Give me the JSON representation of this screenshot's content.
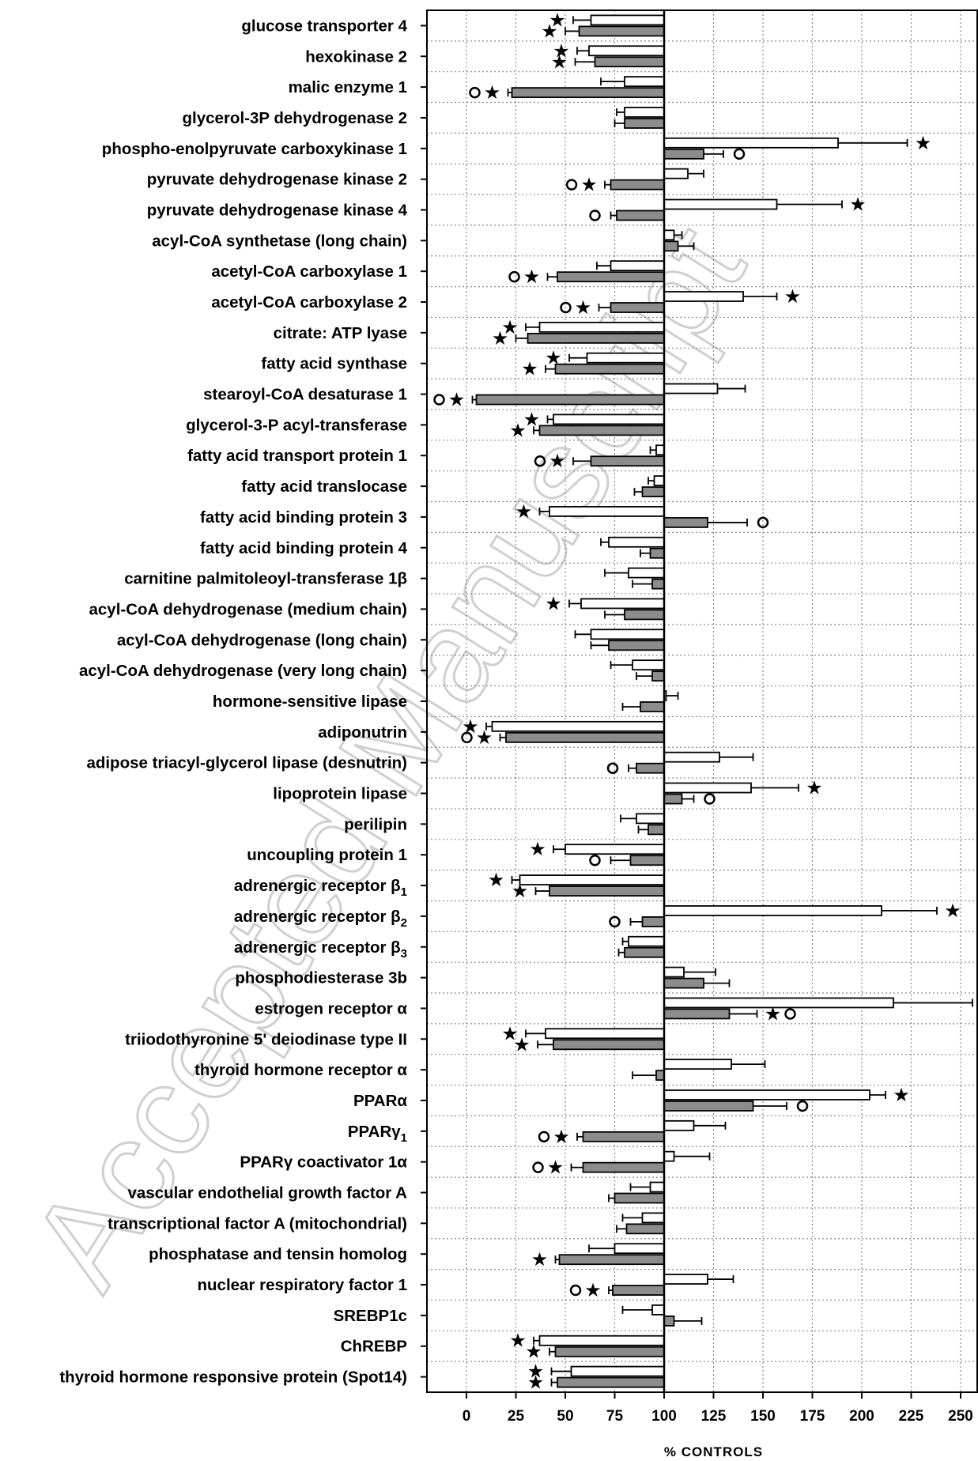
{
  "watermark": "Accepted Manuscript",
  "chart_data": {
    "type": "bar",
    "orientation": "horizontal",
    "xlabel": "% CONTROLS",
    "xlim": [
      -20,
      255
    ],
    "xticks": [
      0,
      25,
      50,
      75,
      100,
      125,
      150,
      175,
      200,
      225,
      250
    ],
    "baseline": 100,
    "grid": true,
    "series": [
      {
        "style": "white"
      },
      {
        "style": "gray"
      }
    ],
    "categories": [
      {
        "label": "glucose transporter 4",
        "v1": 63,
        "e1": 9,
        "m1": "star",
        "v2": 57,
        "e2": 7,
        "m2": "star"
      },
      {
        "label": "hexokinase 2",
        "v1": 62,
        "e1": 6,
        "m1": "star",
        "v2": 65,
        "e2": 10,
        "m2": "star"
      },
      {
        "label": "malic enzyme 1",
        "v1": 80,
        "e1": 12,
        "m1": "",
        "v2": 23,
        "e2": 2,
        "m2": "circle-star"
      },
      {
        "label": "glycerol-3P dehydrogenase 2",
        "v1": 80,
        "e1": 4,
        "m1": "",
        "v2": 80,
        "e2": 5,
        "m2": ""
      },
      {
        "label": "phospho-enolpyruvate carboxykinase 1",
        "v1": 188,
        "e1": 35,
        "m1": "star",
        "v2": 120,
        "e2": 10,
        "m2": "circle"
      },
      {
        "label": "pyruvate dehydrogenase kinase 2",
        "v1": 112,
        "e1": 8,
        "m1": "",
        "v2": 73,
        "e2": 3,
        "m2": "circle-star"
      },
      {
        "label": "pyruvate dehydrogenase kinase 4",
        "v1": 157,
        "e1": 33,
        "m1": "star",
        "v2": 76,
        "e2": 3,
        "m2": "circle"
      },
      {
        "label": "acyl-CoA synthetase (long chain)",
        "v1": 105,
        "e1": 4,
        "m1": "",
        "v2": 107,
        "e2": 8,
        "m2": ""
      },
      {
        "label": "acetyl-CoA carboxylase 1",
        "v1": 73,
        "e1": 7,
        "m1": "",
        "v2": 46,
        "e2": 5,
        "m2": "circle-star"
      },
      {
        "label": "acetyl-CoA carboxylase 2",
        "v1": 140,
        "e1": 17,
        "m1": "star",
        "v2": 73,
        "e2": 6,
        "m2": "circle-star"
      },
      {
        "label": "citrate: ATP lyase",
        "v1": 37,
        "e1": 7,
        "m1": "star",
        "v2": 31,
        "e2": 6,
        "m2": "star"
      },
      {
        "label": "fatty acid synthase",
        "v1": 61,
        "e1": 9,
        "m1": "star",
        "v2": 45,
        "e2": 5,
        "m2": "star"
      },
      {
        "label": "stearoyl-CoA desaturase 1",
        "v1": 127,
        "e1": 14,
        "m1": "",
        "v2": 5,
        "e2": 2,
        "m2": "circle-star"
      },
      {
        "label": "glycerol-3-P acyl-transferase",
        "v1": 44,
        "e1": 3,
        "m1": "star",
        "v2": 37,
        "e2": 3,
        "m2": "star"
      },
      {
        "label": "fatty acid transport protein 1",
        "v1": 96,
        "e1": 3,
        "m1": "",
        "v2": 63,
        "e2": 9,
        "m2": "circle-star"
      },
      {
        "label": "fatty acid translocase",
        "v1": 95,
        "e1": 3,
        "m1": "",
        "v2": 89,
        "e2": 4,
        "m2": ""
      },
      {
        "label": "fatty acid binding protein 3",
        "v1": 42,
        "e1": 5,
        "m1": "star",
        "v2": 122,
        "e2": 20,
        "m2": "circle"
      },
      {
        "label": "fatty acid binding protein 4",
        "v1": 72,
        "e1": 4,
        "m1": "",
        "v2": 93,
        "e2": 5,
        "m2": ""
      },
      {
        "label": "carnitine palmitoleoyl-transferase 1β",
        "v1": 82,
        "e1": 12,
        "m1": "",
        "v2": 94,
        "e2": 10,
        "m2": ""
      },
      {
        "label": "acyl-CoA dehydrogenase (medium chain)",
        "v1": 58,
        "e1": 6,
        "m1": "star",
        "v2": 80,
        "e2": 10,
        "m2": ""
      },
      {
        "label": "acyl-CoA dehydrogenase (long chain)",
        "v1": 63,
        "e1": 8,
        "m1": "",
        "v2": 72,
        "e2": 9,
        "m2": ""
      },
      {
        "label": "acyl-CoA dehydrogenase (very long chain)",
        "v1": 84,
        "e1": 11,
        "m1": "",
        "v2": 94,
        "e2": 8,
        "m2": ""
      },
      {
        "label": "hormone-sensitive lipase",
        "v1": 101,
        "e1": 6,
        "m1": "",
        "v2": 88,
        "e2": 9,
        "m2": ""
      },
      {
        "label": "adiponutrin",
        "v1": 13,
        "e1": 3,
        "m1": "star",
        "v2": 20,
        "e2": 3,
        "m2": "circle-star"
      },
      {
        "label": "adipose triacyl-glycerol lipase (desnutrin)",
        "v1": 128,
        "e1": 17,
        "m1": "",
        "v2": 86,
        "e2": 4,
        "m2": "circle"
      },
      {
        "label": "lipoprotein lipase",
        "v1": 144,
        "e1": 24,
        "m1": "star",
        "v2": 109,
        "e2": 6,
        "m2": "circle"
      },
      {
        "label": "perilipin",
        "v1": 86,
        "e1": 8,
        "m1": "",
        "v2": 92,
        "e2": 5,
        "m2": ""
      },
      {
        "label": "uncoupling protein 1",
        "v1": 50,
        "e1": 6,
        "m1": "star",
        "v2": 83,
        "e2": 10,
        "m2": "circle"
      },
      {
        "label": "adrenergic receptor β1",
        "v1": 27,
        "e1": 4,
        "m1": "star",
        "v2": 42,
        "e2": 7,
        "m2": "star"
      },
      {
        "label": "adrenergic receptor β2",
        "v1": 210,
        "e1": 28,
        "m1": "star",
        "v2": 89,
        "e2": 6,
        "m2": "circle"
      },
      {
        "label": "adrenergic receptor β3",
        "v1": 82,
        "e1": 3,
        "m1": "",
        "v2": 80,
        "e2": 3,
        "m2": ""
      },
      {
        "label": "phosphodiesterase 3b",
        "v1": 110,
        "e1": 16,
        "m1": "",
        "v2": 120,
        "e2": 13,
        "m2": ""
      },
      {
        "label": "estrogen receptor α",
        "v1": 216,
        "e1": 40,
        "m1": "",
        "v2": 133,
        "e2": 14,
        "m2": "circle-star"
      },
      {
        "label": "triiodothyronine 5' deiodinase type II",
        "v1": 40,
        "e1": 10,
        "m1": "star",
        "v2": 44,
        "e2": 8,
        "m2": "star"
      },
      {
        "label": "thyroid hormone receptor α",
        "v1": 134,
        "e1": 17,
        "m1": "",
        "v2": 96,
        "e2": 12,
        "m2": ""
      },
      {
        "label": "PPARα",
        "v1": 204,
        "e1": 8,
        "m1": "star",
        "v2": 145,
        "e2": 17,
        "m2": "circle"
      },
      {
        "label": "PPARγ1",
        "v1": 115,
        "e1": 16,
        "m1": "",
        "v2": 59,
        "e2": 3,
        "m2": "circle-star"
      },
      {
        "label": "PPARγ coactivator 1α",
        "v1": 105,
        "e1": 18,
        "m1": "",
        "v2": 59,
        "e2": 6,
        "m2": "circle-star"
      },
      {
        "label": "vascular endothelial growth factor A",
        "v1": 93,
        "e1": 10,
        "m1": "",
        "v2": 75,
        "e2": 3,
        "m2": ""
      },
      {
        "label": "transcriptional factor A (mitochondrial)",
        "v1": 89,
        "e1": 10,
        "m1": "",
        "v2": 81,
        "e2": 5,
        "m2": ""
      },
      {
        "label": "phosphatase and tensin homolog",
        "v1": 75,
        "e1": 13,
        "m1": "",
        "v2": 47,
        "e2": 2,
        "m2": "star"
      },
      {
        "label": "nuclear respiratory factor 1",
        "v1": 122,
        "e1": 13,
        "m1": "",
        "v2": 74,
        "e2": 2,
        "m2": "circle-star"
      },
      {
        "label": "SREBP1c",
        "v1": 94,
        "e1": 15,
        "m1": "",
        "v2": 105,
        "e2": 14,
        "m2": ""
      },
      {
        "label": "ChREBP",
        "v1": 37,
        "e1": 3,
        "m1": "star",
        "v2": 45,
        "e2": 3,
        "m2": "star"
      },
      {
        "label": "thyroid hormone responsive protein (Spot14)",
        "v1": 53,
        "e1": 10,
        "m1": "star",
        "v2": 46,
        "e2": 3,
        "m2": "star"
      }
    ]
  }
}
